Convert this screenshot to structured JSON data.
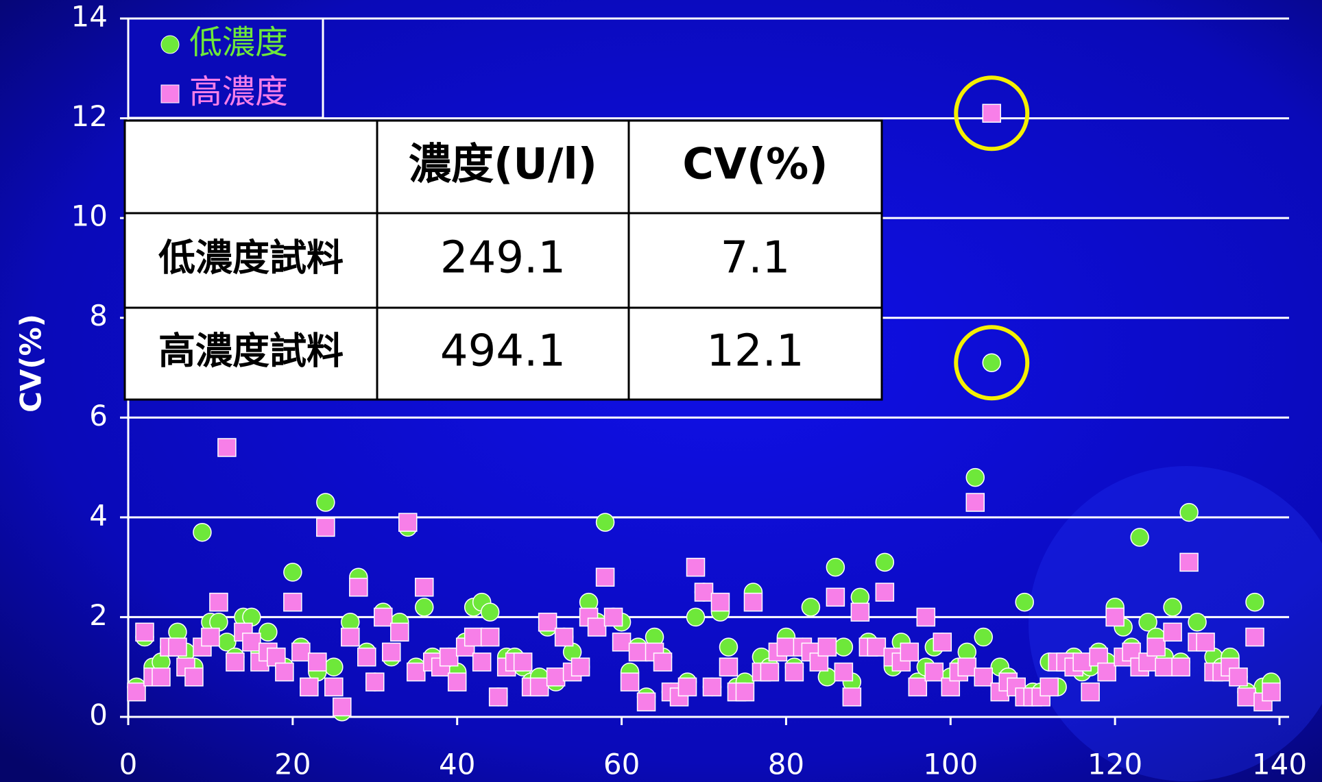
{
  "chart_data": {
    "type": "scatter",
    "ylabel": "CV(%)",
    "xlim": [
      0,
      140
    ],
    "xticks": [
      0,
      20,
      40,
      60,
      80,
      100,
      120,
      140
    ],
    "ylim": [
      0,
      14
    ],
    "yticks": [
      0,
      2,
      4,
      6,
      8,
      10,
      12,
      14
    ],
    "grid": true,
    "legend": "upper left",
    "x": [
      1,
      2,
      3,
      4,
      5,
      6,
      7,
      8,
      9,
      10,
      11,
      12,
      13,
      14,
      15,
      16,
      17,
      18,
      19,
      20,
      21,
      22,
      23,
      24,
      25,
      26,
      27,
      28,
      29,
      30,
      31,
      32,
      33,
      34,
      35,
      36,
      37,
      38,
      39,
      40,
      41,
      42,
      43,
      44,
      45,
      46,
      47,
      48,
      49,
      50,
      51,
      52,
      53,
      54,
      55,
      56,
      57,
      58,
      59,
      60,
      61,
      62,
      63,
      64,
      65,
      66,
      67,
      68,
      69,
      70,
      71,
      72,
      73,
      74,
      75,
      76,
      77,
      78,
      79,
      80,
      81,
      82,
      83,
      84,
      85,
      86,
      87,
      88,
      89,
      90,
      91,
      92,
      93,
      94,
      95,
      96,
      97,
      98,
      99,
      100,
      101,
      102,
      103,
      104,
      105,
      106,
      107,
      108,
      109,
      110,
      111,
      112,
      113,
      114,
      115,
      116,
      117,
      118,
      119,
      120,
      121,
      122,
      123,
      124,
      125,
      126,
      127,
      128,
      129,
      130,
      131,
      132,
      133,
      134,
      135,
      136,
      137,
      138,
      139
    ],
    "series": [
      {
        "name": "低濃度",
        "color": "#6ee83a",
        "marker": "circle",
        "values": [
          0.6,
          1.6,
          1.0,
          1.1,
          1.4,
          1.7,
          1.3,
          1.0,
          3.7,
          1.9,
          1.9,
          1.5,
          1.2,
          2.0,
          2.0,
          1.3,
          1.7,
          1.2,
          1.0,
          2.9,
          1.4,
          0.6,
          0.9,
          4.3,
          1.0,
          0.1,
          1.9,
          2.8,
          1.3,
          0.7,
          2.1,
          1.2,
          1.9,
          3.8,
          1.0,
          2.2,
          1.2,
          1.1,
          1.2,
          0.9,
          1.5,
          2.2,
          2.3,
          2.1,
          0.4,
          1.2,
          1.2,
          1.0,
          0.7,
          0.8,
          1.8,
          0.7,
          1.6,
          1.3,
          1.0,
          2.3,
          1.9,
          3.9,
          2.0,
          1.9,
          0.9,
          1.4,
          0.4,
          1.6,
          1.2,
          0.5,
          0.5,
          0.7,
          2.0,
          2.5,
          0.6,
          2.1,
          1.4,
          0.6,
          0.7,
          2.5,
          1.2,
          1.0,
          1.3,
          1.6,
          1.0,
          1.4,
          2.2,
          1.2,
          0.8,
          3.0,
          1.4,
          0.7,
          2.4,
          1.5,
          1.4,
          3.1,
          1.0,
          1.5,
          1.3,
          0.7,
          1.0,
          1.4,
          1.5,
          0.8,
          1.0,
          1.3,
          4.8,
          1.6,
          7.1,
          1.0,
          0.8,
          0.6,
          2.3,
          0.5,
          0.5,
          1.1,
          0.6,
          1.1,
          1.2,
          0.9,
          1.0,
          1.3,
          1.1,
          2.2,
          1.8,
          1.4,
          3.6,
          1.9,
          1.6,
          1.2,
          2.2,
          1.1,
          4.1,
          1.9,
          1.5,
          1.2,
          1.0,
          1.2,
          0.8,
          0.5,
          2.3,
          0.6,
          0.7
        ]
      },
      {
        "name": "高濃度",
        "color": "#f77fe8",
        "marker": "square",
        "values": [
          0.5,
          1.7,
          0.8,
          0.8,
          1.4,
          1.4,
          1.0,
          0.8,
          1.4,
          1.6,
          2.3,
          5.4,
          1.1,
          1.7,
          1.5,
          1.1,
          1.3,
          1.2,
          0.9,
          2.3,
          1.3,
          0.6,
          1.1,
          3.8,
          0.6,
          0.2,
          1.6,
          2.6,
          1.2,
          0.7,
          2.0,
          1.3,
          1.7,
          3.9,
          0.9,
          2.6,
          1.1,
          1.0,
          1.2,
          0.7,
          1.4,
          1.6,
          1.1,
          1.6,
          0.4,
          1.0,
          1.1,
          1.1,
          0.6,
          0.6,
          1.9,
          0.8,
          1.6,
          0.9,
          1.0,
          2.0,
          1.8,
          2.8,
          2.0,
          1.5,
          0.7,
          1.3,
          0.3,
          1.3,
          1.1,
          0.5,
          0.4,
          0.6,
          3.0,
          2.5,
          0.6,
          2.3,
          1.0,
          0.5,
          0.5,
          2.3,
          0.9,
          0.9,
          1.3,
          1.4,
          0.9,
          1.4,
          1.3,
          1.1,
          1.4,
          2.4,
          0.9,
          0.4,
          2.1,
          1.4,
          1.4,
          2.5,
          1.2,
          1.1,
          1.3,
          0.6,
          2.0,
          0.9,
          1.5,
          0.6,
          0.9,
          1.0,
          4.3,
          0.8,
          12.1,
          0.5,
          0.7,
          0.6,
          0.4,
          0.4,
          0.4,
          0.6,
          1.1,
          1.1,
          1.0,
          1.1,
          0.5,
          1.2,
          0.9,
          2.0,
          1.2,
          1.3,
          1.0,
          1.1,
          1.4,
          1.0,
          1.7,
          1.0,
          3.1,
          1.5,
          1.5,
          0.9,
          0.9,
          1.0,
          0.8,
          0.4,
          1.6,
          0.3,
          0.5
        ]
      }
    ]
  },
  "table": {
    "header": [
      "濃度(U/l)",
      "CV(%)"
    ],
    "rows": [
      [
        "低濃度試料",
        "249.1",
        "7.1"
      ],
      [
        "高濃度試料",
        "494.1",
        "12.1"
      ]
    ]
  }
}
